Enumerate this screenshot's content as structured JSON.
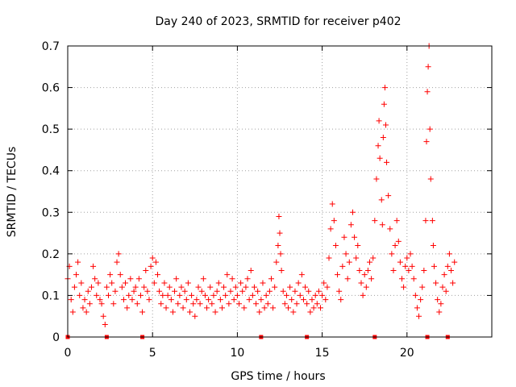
{
  "chart_data": {
    "type": "scatter",
    "title": "Day 240 of 2023, SRMTID for receiver p402",
    "xlabel": "GPS time / hours",
    "ylabel": "SRMTID / TECUs",
    "xlim": [
      0,
      25
    ],
    "ylim": [
      0,
      0.7
    ],
    "xticks": [
      0,
      5,
      10,
      15,
      20
    ],
    "yticks": [
      0,
      0.1,
      0.2,
      0.3,
      0.4,
      0.5,
      0.6,
      0.7
    ],
    "xtick_labels": [
      "0",
      "5",
      "10",
      "15",
      "20"
    ],
    "ytick_labels": [
      "0",
      "0.1",
      "0.2",
      "0.3",
      "0.4",
      "0.5",
      "0.6",
      "0.7"
    ],
    "grid": true,
    "marker": "+",
    "color": "#ff0000",
    "series": [
      {
        "name": "SRMTID",
        "points": [
          [
            0.0,
            0.14
          ],
          [
            0.1,
            0.17
          ],
          [
            0.2,
            0.09
          ],
          [
            0.3,
            0.06
          ],
          [
            0.4,
            0.12
          ],
          [
            0.5,
            0.15
          ],
          [
            0.6,
            0.18
          ],
          [
            0.7,
            0.1
          ],
          [
            0.8,
            0.13
          ],
          [
            0.9,
            0.07
          ],
          [
            1.0,
            0.09
          ],
          [
            1.1,
            0.06
          ],
          [
            1.2,
            0.11
          ],
          [
            1.3,
            0.08
          ],
          [
            1.4,
            0.12
          ],
          [
            1.5,
            0.17
          ],
          [
            1.6,
            0.14
          ],
          [
            1.7,
            0.1
          ],
          [
            1.8,
            0.13
          ],
          [
            1.9,
            0.09
          ],
          [
            2.0,
            0.08
          ],
          [
            2.1,
            0.05
          ],
          [
            2.2,
            0.03
          ],
          [
            2.3,
            0.12
          ],
          [
            2.4,
            0.1
          ],
          [
            2.5,
            0.15
          ],
          [
            2.6,
            0.13
          ],
          [
            2.7,
            0.08
          ],
          [
            2.8,
            0.11
          ],
          [
            2.9,
            0.18
          ],
          [
            3.0,
            0.2
          ],
          [
            3.1,
            0.15
          ],
          [
            3.2,
            0.12
          ],
          [
            3.3,
            0.09
          ],
          [
            3.4,
            0.13
          ],
          [
            3.5,
            0.07
          ],
          [
            3.6,
            0.1
          ],
          [
            3.7,
            0.14
          ],
          [
            3.8,
            0.09
          ],
          [
            3.9,
            0.11
          ],
          [
            4.0,
            0.12
          ],
          [
            4.1,
            0.08
          ],
          [
            4.2,
            0.14
          ],
          [
            4.3,
            0.1
          ],
          [
            4.4,
            0.06
          ],
          [
            4.5,
            0.12
          ],
          [
            4.6,
            0.16
          ],
          [
            4.7,
            0.11
          ],
          [
            4.8,
            0.09
          ],
          [
            4.9,
            0.17
          ],
          [
            5.0,
            0.19
          ],
          [
            5.1,
            0.13
          ],
          [
            5.2,
            0.18
          ],
          [
            5.3,
            0.15
          ],
          [
            5.4,
            0.11
          ],
          [
            5.5,
            0.08
          ],
          [
            5.6,
            0.1
          ],
          [
            5.7,
            0.13
          ],
          [
            5.8,
            0.07
          ],
          [
            5.9,
            0.1
          ],
          [
            6.0,
            0.12
          ],
          [
            6.1,
            0.09
          ],
          [
            6.2,
            0.06
          ],
          [
            6.3,
            0.11
          ],
          [
            6.4,
            0.14
          ],
          [
            6.5,
            0.08
          ],
          [
            6.6,
            0.1
          ],
          [
            6.7,
            0.12
          ],
          [
            6.8,
            0.07
          ],
          [
            6.9,
            0.11
          ],
          [
            7.0,
            0.09
          ],
          [
            7.1,
            0.13
          ],
          [
            7.2,
            0.06
          ],
          [
            7.3,
            0.1
          ],
          [
            7.4,
            0.08
          ],
          [
            7.5,
            0.05
          ],
          [
            7.6,
            0.09
          ],
          [
            7.7,
            0.12
          ],
          [
            7.8,
            0.08
          ],
          [
            7.9,
            0.11
          ],
          [
            8.0,
            0.14
          ],
          [
            8.1,
            0.1
          ],
          [
            8.2,
            0.07
          ],
          [
            8.3,
            0.09
          ],
          [
            8.4,
            0.12
          ],
          [
            8.5,
            0.08
          ],
          [
            8.6,
            0.1
          ],
          [
            8.7,
            0.06
          ],
          [
            8.8,
            0.11
          ],
          [
            8.9,
            0.13
          ],
          [
            9.0,
            0.09
          ],
          [
            9.1,
            0.07
          ],
          [
            9.2,
            0.12
          ],
          [
            9.3,
            0.1
          ],
          [
            9.4,
            0.15
          ],
          [
            9.5,
            0.08
          ],
          [
            9.6,
            0.11
          ],
          [
            9.7,
            0.14
          ],
          [
            9.8,
            0.09
          ],
          [
            9.9,
            0.12
          ],
          [
            10.0,
            0.1
          ],
          [
            10.1,
            0.08
          ],
          [
            10.2,
            0.13
          ],
          [
            10.3,
            0.11
          ],
          [
            10.4,
            0.07
          ],
          [
            10.5,
            0.12
          ],
          [
            10.6,
            0.14
          ],
          [
            10.7,
            0.09
          ],
          [
            10.8,
            0.16
          ],
          [
            10.9,
            0.1
          ],
          [
            11.0,
            0.12
          ],
          [
            11.1,
            0.08
          ],
          [
            11.2,
            0.11
          ],
          [
            11.3,
            0.06
          ],
          [
            11.4,
            0.09
          ],
          [
            11.5,
            0.13
          ],
          [
            11.6,
            0.07
          ],
          [
            11.7,
            0.1
          ],
          [
            11.8,
            0.08
          ],
          [
            11.9,
            0.11
          ],
          [
            12.0,
            0.14
          ],
          [
            12.1,
            0.07
          ],
          [
            12.2,
            0.12
          ],
          [
            12.3,
            0.18
          ],
          [
            12.4,
            0.22
          ],
          [
            12.45,
            0.29
          ],
          [
            12.5,
            0.25
          ],
          [
            12.55,
            0.2
          ],
          [
            12.6,
            0.16
          ],
          [
            12.7,
            0.11
          ],
          [
            12.8,
            0.08
          ],
          [
            12.9,
            0.1
          ],
          [
            13.0,
            0.07
          ],
          [
            13.1,
            0.12
          ],
          [
            13.2,
            0.09
          ],
          [
            13.3,
            0.06
          ],
          [
            13.4,
            0.11
          ],
          [
            13.5,
            0.08
          ],
          [
            13.6,
            0.13
          ],
          [
            13.7,
            0.1
          ],
          [
            13.8,
            0.15
          ],
          [
            13.9,
            0.09
          ],
          [
            14.0,
            0.12
          ],
          [
            14.1,
            0.08
          ],
          [
            14.2,
            0.11
          ],
          [
            14.3,
            0.06
          ],
          [
            14.4,
            0.09
          ],
          [
            14.5,
            0.07
          ],
          [
            14.6,
            0.1
          ],
          [
            14.7,
            0.08
          ],
          [
            14.8,
            0.11
          ],
          [
            14.9,
            0.07
          ],
          [
            15.0,
            0.1
          ],
          [
            15.1,
            0.13
          ],
          [
            15.2,
            0.09
          ],
          [
            15.3,
            0.12
          ],
          [
            15.4,
            0.19
          ],
          [
            15.5,
            0.26
          ],
          [
            15.6,
            0.32
          ],
          [
            15.7,
            0.28
          ],
          [
            15.8,
            0.22
          ],
          [
            15.9,
            0.15
          ],
          [
            16.0,
            0.11
          ],
          [
            16.1,
            0.09
          ],
          [
            16.2,
            0.17
          ],
          [
            16.3,
            0.24
          ],
          [
            16.4,
            0.2
          ],
          [
            16.5,
            0.14
          ],
          [
            16.6,
            0.18
          ],
          [
            16.7,
            0.27
          ],
          [
            16.8,
            0.3
          ],
          [
            16.9,
            0.24
          ],
          [
            17.0,
            0.19
          ],
          [
            17.1,
            0.22
          ],
          [
            17.2,
            0.16
          ],
          [
            17.3,
            0.13
          ],
          [
            17.4,
            0.1
          ],
          [
            17.5,
            0.15
          ],
          [
            17.6,
            0.12
          ],
          [
            17.7,
            0.16
          ],
          [
            17.8,
            0.18
          ],
          [
            17.9,
            0.14
          ],
          [
            18.0,
            0.19
          ],
          [
            18.1,
            0.28
          ],
          [
            18.2,
            0.38
          ],
          [
            18.3,
            0.46
          ],
          [
            18.35,
            0.52
          ],
          [
            18.4,
            0.43
          ],
          [
            18.5,
            0.33
          ],
          [
            18.55,
            0.27
          ],
          [
            18.6,
            0.48
          ],
          [
            18.65,
            0.56
          ],
          [
            18.7,
            0.6
          ],
          [
            18.75,
            0.51
          ],
          [
            18.8,
            0.42
          ],
          [
            18.9,
            0.34
          ],
          [
            19.0,
            0.26
          ],
          [
            19.1,
            0.2
          ],
          [
            19.2,
            0.16
          ],
          [
            19.3,
            0.22
          ],
          [
            19.4,
            0.28
          ],
          [
            19.5,
            0.23
          ],
          [
            19.6,
            0.18
          ],
          [
            19.7,
            0.14
          ],
          [
            19.8,
            0.12
          ],
          [
            19.9,
            0.17
          ],
          [
            20.0,
            0.19
          ],
          [
            20.1,
            0.16
          ],
          [
            20.2,
            0.2
          ],
          [
            20.3,
            0.17
          ],
          [
            20.4,
            0.14
          ],
          [
            20.5,
            0.1
          ],
          [
            20.6,
            0.07
          ],
          [
            20.7,
            0.05
          ],
          [
            20.8,
            0.09
          ],
          [
            20.9,
            0.12
          ],
          [
            21.0,
            0.16
          ],
          [
            21.1,
            0.28
          ],
          [
            21.15,
            0.47
          ],
          [
            21.2,
            0.59
          ],
          [
            21.25,
            0.65
          ],
          [
            21.3,
            0.7
          ],
          [
            21.35,
            0.5
          ],
          [
            21.4,
            0.38
          ],
          [
            21.5,
            0.28
          ],
          [
            21.55,
            0.22
          ],
          [
            21.6,
            0.17
          ],
          [
            21.7,
            0.13
          ],
          [
            21.8,
            0.09
          ],
          [
            21.9,
            0.06
          ],
          [
            22.0,
            0.08
          ],
          [
            22.1,
            0.12
          ],
          [
            22.2,
            0.15
          ],
          [
            22.3,
            0.11
          ],
          [
            22.4,
            0.17
          ],
          [
            22.5,
            0.2
          ],
          [
            22.6,
            0.16
          ],
          [
            22.7,
            0.13
          ],
          [
            22.8,
            0.18
          ]
        ]
      }
    ],
    "zero_markers_x": [
      0.0,
      2.3,
      4.4,
      11.4,
      14.1,
      18.1,
      21.2,
      22.4
    ]
  }
}
